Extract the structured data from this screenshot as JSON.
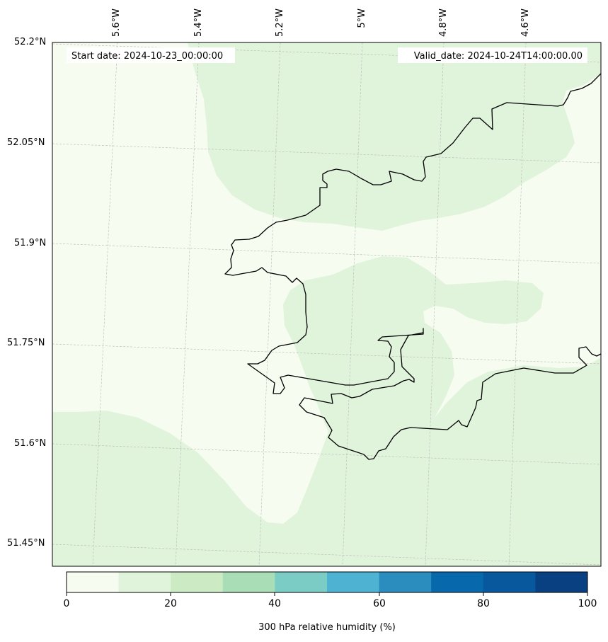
{
  "map": {
    "start_date": "Start date: 2024-10-23_00:00:00",
    "valid_date": "Valid_date: 2024-10-24T14:00:00.00",
    "lon_labels": [
      "5.6°W",
      "5.4°W",
      "5.2°W",
      "5°W",
      "4.8°W",
      "4.6°W"
    ],
    "lat_labels": [
      "52.2°N",
      "52.05°N",
      "51.9°N",
      "51.75°N",
      "51.6°N",
      "51.45°N"
    ],
    "colors": {
      "land_outline": "#000000",
      "level_0_10": "#f7fcf0",
      "level_10_20": "#e0f3db",
      "gridline": "#b8b8b8"
    }
  },
  "colorbar": {
    "title": "300 hPa relative humidity (%)",
    "ticks": [
      "0",
      "20",
      "40",
      "60",
      "80",
      "100"
    ],
    "bins": [
      "#f7fcf0",
      "#e0f3db",
      "#ccebc5",
      "#a8ddb5",
      "#7bccc4",
      "#4eb3d3",
      "#2b8cbe",
      "#0868ac",
      "#08589e",
      "#084081"
    ]
  }
}
